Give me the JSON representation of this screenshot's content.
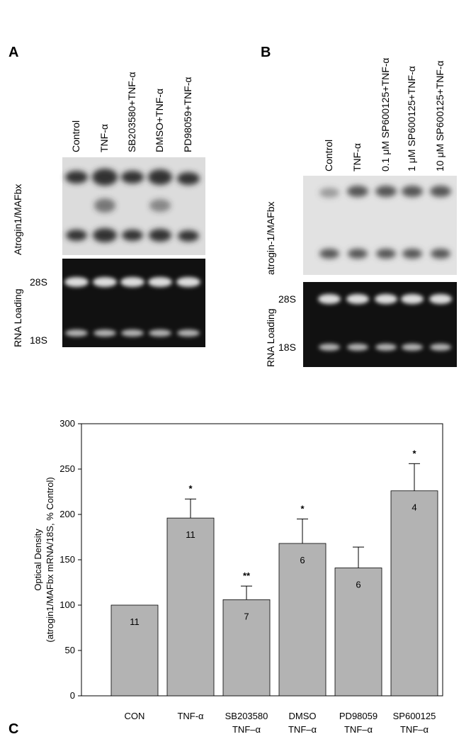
{
  "panel_a": {
    "label": "A",
    "lanes": [
      "Control",
      "TNF-α",
      "SB203580+TNF-α",
      "DMSO+TNF-α",
      "PD98059+TNF-α"
    ],
    "rows": [
      "Atrogin1/MAFbx",
      "RNA Loading"
    ],
    "bands": [
      "28S",
      "18S"
    ]
  },
  "panel_b": {
    "label": "B",
    "lanes": [
      "Control",
      "TNF-α",
      "0.1 μM SP600125+TNF-α",
      "1 μM SP600125+TNF-α",
      "10 μM SP600125+TNF-α"
    ],
    "rows": [
      "atrogin-1/MAFbx",
      "RNA Loading"
    ],
    "bands": [
      "28S",
      "18S"
    ]
  },
  "chart_data": {
    "type": "bar",
    "panel": "C",
    "y_label": [
      "Optical Density",
      "(atrogin1/MAFbx mRNA/18S, % Control)"
    ],
    "categories": [
      [
        "CON"
      ],
      [
        "TNF-α"
      ],
      [
        "SB203580",
        "TNF–α"
      ],
      [
        "DMSO",
        "TNF–α"
      ],
      [
        "PD98059",
        "TNF–α"
      ],
      [
        "SP600125",
        "TNF–α"
      ]
    ],
    "values": [
      100,
      196,
      106,
      168,
      141,
      226
    ],
    "errors": [
      0,
      21,
      15,
      27,
      23,
      30
    ],
    "n_labels": [
      "11",
      "11",
      "7",
      "6",
      "6",
      "4"
    ],
    "significance": [
      null,
      "*",
      "**",
      "*",
      null,
      "*"
    ],
    "color": "#b3b3b3",
    "ylim": [
      0,
      300
    ],
    "yticks": [
      0,
      50,
      100,
      150,
      200,
      250,
      300
    ]
  }
}
